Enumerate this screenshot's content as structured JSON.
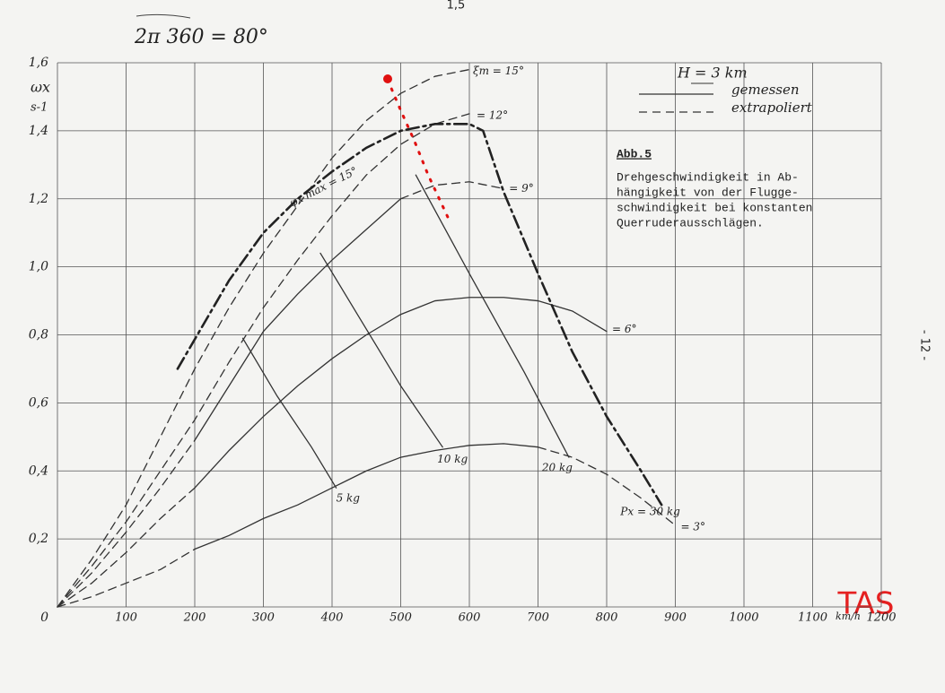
{
  "chart_data": {
    "type": "line",
    "top_note": "1,5",
    "handwritten_note": "2π 360 = 80°",
    "page_number": "- 12 -",
    "tas_note": "TAS",
    "y_label": "ωx",
    "y_unit": "s-1",
    "x_unit": "km/h",
    "xlim": [
      0,
      1200
    ],
    "ylim": [
      0,
      1.6
    ],
    "xticks": [
      0,
      100,
      200,
      300,
      400,
      500,
      600,
      700,
      800,
      900,
      1000,
      1100,
      1200
    ],
    "yticks": [
      0,
      {
        "value": 0.2,
        "label": "0,2"
      },
      {
        "value": 0.4,
        "label": "0,4"
      },
      {
        "value": 0.6,
        "label": "0,6"
      },
      {
        "value": 0.8,
        "label": "0,8"
      },
      {
        "value": 1.0,
        "label": "1,0"
      },
      {
        "value": 1.2,
        "label": "1,2"
      },
      {
        "value": 1.4,
        "label": "1,4"
      },
      {
        "value": 1.6,
        "label": "1,6"
      }
    ],
    "grid": true,
    "legend": {
      "title": "H = 3 km",
      "entries": [
        {
          "label": "gemessen",
          "style": "solid"
        },
        {
          "label": "extrapoliert",
          "style": "dashed"
        }
      ]
    },
    "box": {
      "title": "Abb.5",
      "lines": [
        "Drehgeschwindigkeit in Ab-",
        "hängigkeit von der Flugge-",
        "schwindigkeit bei konstanten",
        "Querruderausschlägen."
      ]
    },
    "force_note": "Px = 30 kg",
    "curves": [
      {
        "style": "dashed",
        "color": "#333",
        "x": [
          0,
          50,
          100,
          150,
          200
        ],
        "values": [
          0,
          0.03,
          0.07,
          0.11,
          0.17
        ]
      },
      {
        "style": "solid",
        "color": "#333",
        "x": [
          200,
          250,
          300,
          350,
          400,
          450,
          500,
          550,
          600,
          650,
          700
        ],
        "values": [
          0.17,
          0.21,
          0.26,
          0.3,
          0.35,
          0.4,
          0.44,
          0.46,
          0.475,
          0.48,
          0.47
        ]
      },
      {
        "style": "dashed",
        "color": "#333",
        "label": "= 3°",
        "x": [
          700,
          750,
          800,
          850,
          900
        ],
        "values": [
          0.47,
          0.44,
          0.39,
          0.32,
          0.24
        ]
      },
      {
        "style": "dashed",
        "color": "#333",
        "x": [
          0,
          50,
          100,
          150,
          200
        ],
        "values": [
          0,
          0.07,
          0.16,
          0.26,
          0.35
        ]
      },
      {
        "style": "solid",
        "color": "#333",
        "label": "= 6°",
        "x": [
          200,
          250,
          300,
          350,
          400,
          450,
          500,
          550,
          600,
          650,
          700,
          750,
          800
        ],
        "values": [
          0.35,
          0.46,
          0.56,
          0.65,
          0.73,
          0.8,
          0.86,
          0.9,
          0.91,
          0.91,
          0.9,
          0.87,
          0.81
        ]
      },
      {
        "style": "dashed",
        "color": "#333",
        "x": [
          0,
          50,
          100,
          150,
          200
        ],
        "values": [
          0,
          0.1,
          0.22,
          0.35,
          0.49
        ]
      },
      {
        "style": "solid",
        "color": "#333",
        "x": [
          200,
          250,
          300,
          350,
          400,
          450,
          500
        ],
        "values": [
          0.49,
          0.65,
          0.81,
          0.92,
          1.02,
          1.11,
          1.2
        ]
      },
      {
        "style": "dashed",
        "color": "#333",
        "label": "= 9°",
        "x": [
          500,
          550,
          600,
          650
        ],
        "values": [
          1.2,
          1.24,
          1.25,
          1.23
        ]
      },
      {
        "style": "dashed",
        "color": "#333",
        "label": "= 12°",
        "x": [
          0,
          50,
          100,
          150,
          200,
          250,
          300,
          350,
          400,
          450,
          500,
          550,
          600
        ],
        "values": [
          0,
          0.12,
          0.25,
          0.4,
          0.55,
          0.72,
          0.88,
          1.02,
          1.15,
          1.27,
          1.36,
          1.42,
          1.45
        ]
      },
      {
        "style": "dashed",
        "color": "#333",
        "label": "ξm = 15°",
        "x": [
          0,
          50,
          100,
          150,
          200,
          250,
          300,
          350,
          400,
          450,
          500,
          550,
          600
        ],
        "values": [
          0,
          0.14,
          0.3,
          0.5,
          0.7,
          0.88,
          1.04,
          1.18,
          1.32,
          1.43,
          1.51,
          1.56,
          1.58
        ]
      },
      {
        "style": "dashdot",
        "color": "#222",
        "label": "φx max = 15°",
        "x": [
          175,
          250,
          300,
          350,
          400,
          450,
          500,
          550,
          600,
          620,
          650,
          700,
          750,
          800,
          850,
          880
        ],
        "values": [
          0.7,
          0.96,
          1.1,
          1.2,
          1.28,
          1.35,
          1.4,
          1.42,
          1.42,
          1.4,
          1.22,
          0.98,
          0.75,
          0.56,
          0.4,
          0.3
        ]
      },
      {
        "style": "solid",
        "color": "#333",
        "label": "5 kg",
        "x": [
          270,
          320,
          370,
          406
        ],
        "values": [
          0.79,
          0.62,
          0.47,
          0.35
        ]
      },
      {
        "style": "solid",
        "color": "#333",
        "label": "10 kg",
        "x": [
          383,
          440,
          500,
          561
        ],
        "values": [
          1.04,
          0.85,
          0.65,
          0.47
        ]
      },
      {
        "style": "solid",
        "color": "#333",
        "label": "20 kg",
        "x": [
          522,
          600,
          680,
          745
        ],
        "values": [
          1.27,
          0.98,
          0.69,
          0.44
        ]
      },
      {
        "style": "dotted",
        "color": "#e01010",
        "x": [
          481,
          500,
          520,
          540,
          570
        ],
        "values": [
          1.55,
          1.46,
          1.37,
          1.27,
          1.14
        ]
      }
    ]
  }
}
